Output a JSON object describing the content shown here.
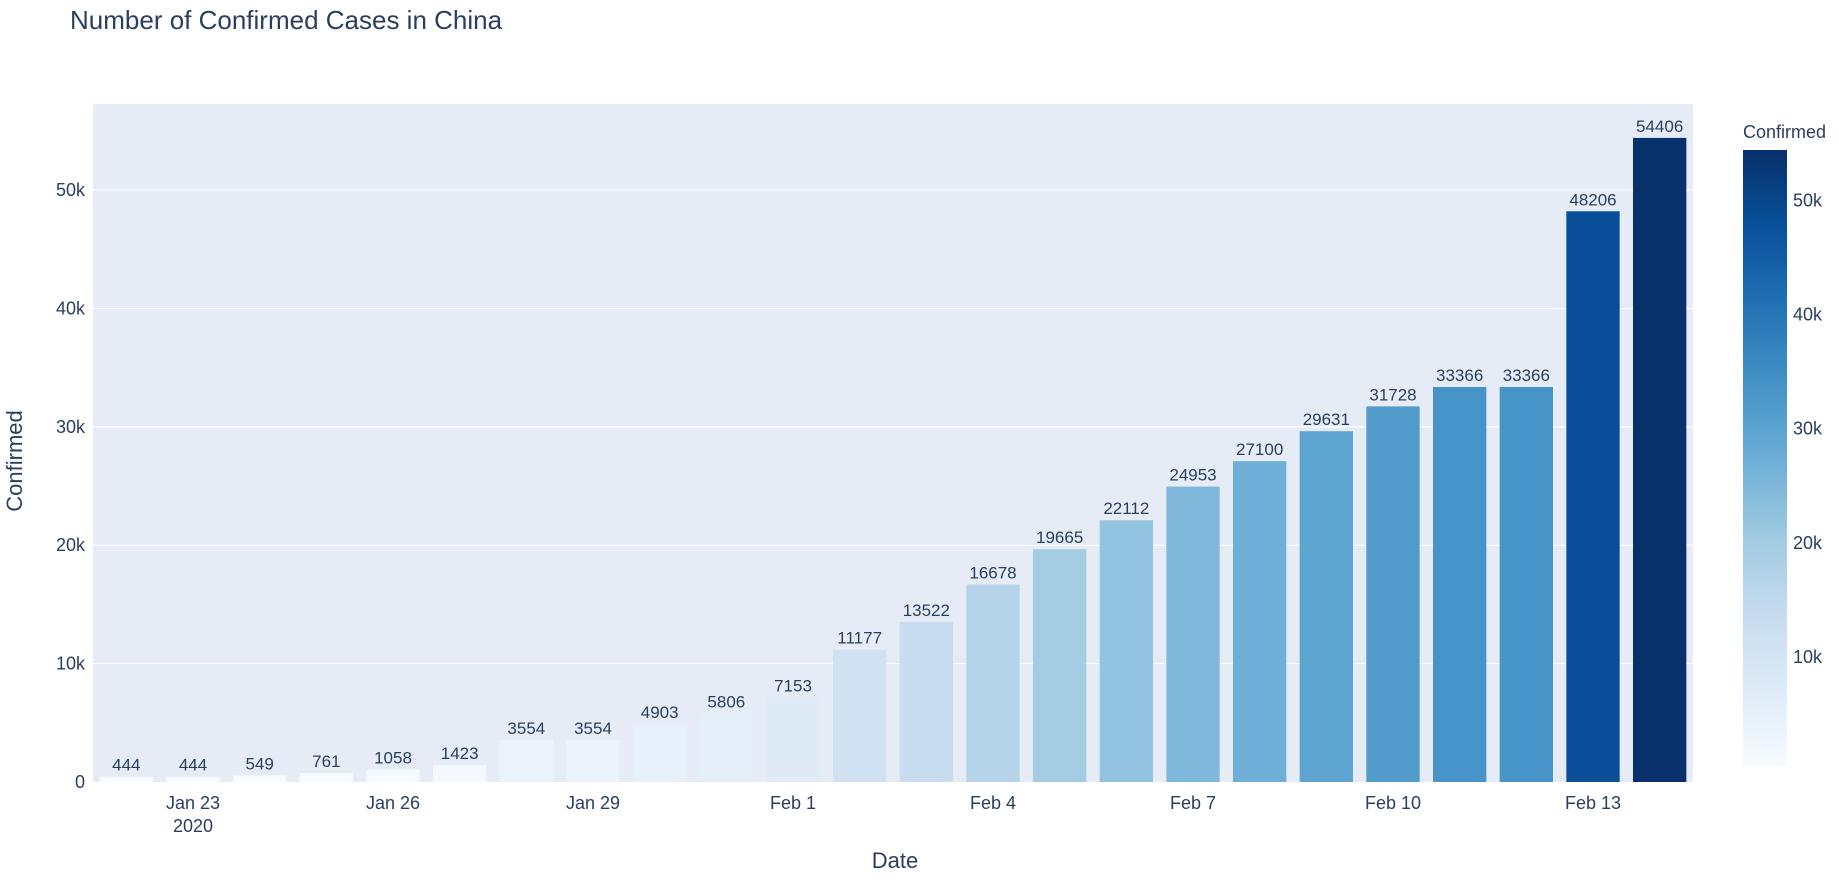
{
  "chart_data": {
    "type": "bar",
    "title": "Number of Confirmed Cases in China",
    "xlabel": "Date",
    "ylabel": "Confirmed",
    "x": [
      "2020-01-22",
      "2020-01-23",
      "2020-01-24",
      "2020-01-25",
      "2020-01-26",
      "2020-01-27",
      "2020-01-28",
      "2020-01-29",
      "2020-01-30",
      "2020-01-31",
      "2020-02-01",
      "2020-02-02",
      "2020-02-03",
      "2020-02-04",
      "2020-02-05",
      "2020-02-06",
      "2020-02-07",
      "2020-02-08",
      "2020-02-09",
      "2020-02-10",
      "2020-02-11",
      "2020-02-12",
      "2020-02-13",
      "2020-02-14"
    ],
    "values": [
      444,
      444,
      549,
      761,
      1058,
      1423,
      3554,
      3554,
      4903,
      5806,
      7153,
      11177,
      13522,
      16678,
      19665,
      22112,
      24953,
      27100,
      29631,
      31728,
      33366,
      33366,
      48206,
      54406
    ],
    "x_ticks": [
      {
        "date": "2020-01-23",
        "label": "Jan 23",
        "sublabel": "2020"
      },
      {
        "date": "2020-01-26",
        "label": "Jan 26",
        "sublabel": ""
      },
      {
        "date": "2020-01-29",
        "label": "Jan 29",
        "sublabel": ""
      },
      {
        "date": "2020-02-01",
        "label": "Feb 1",
        "sublabel": ""
      },
      {
        "date": "2020-02-04",
        "label": "Feb 4",
        "sublabel": ""
      },
      {
        "date": "2020-02-07",
        "label": "Feb 7",
        "sublabel": ""
      },
      {
        "date": "2020-02-10",
        "label": "Feb 10",
        "sublabel": ""
      },
      {
        "date": "2020-02-13",
        "label": "Feb 13",
        "sublabel": ""
      }
    ],
    "y_ticks": [
      {
        "value": 0,
        "label": "0"
      },
      {
        "value": 10000,
        "label": "10k"
      },
      {
        "value": 20000,
        "label": "20k"
      },
      {
        "value": 30000,
        "label": "30k"
      },
      {
        "value": 40000,
        "label": "40k"
      },
      {
        "value": 50000,
        "label": "50k"
      }
    ],
    "ylim": [
      0,
      57270
    ],
    "grid": true,
    "bar_labels": "outside",
    "colorbar": {
      "title": "Confirmed",
      "range": [
        444,
        54406
      ],
      "ticks": [
        {
          "value": 10000,
          "label": "10k"
        },
        {
          "value": 20000,
          "label": "20k"
        },
        {
          "value": 30000,
          "label": "30k"
        },
        {
          "value": 40000,
          "label": "40k"
        },
        {
          "value": 50000,
          "label": "50k"
        }
      ],
      "colorscale": [
        "#f7fbff",
        "#deebf7",
        "#c6dbef",
        "#9ecae1",
        "#6baed6",
        "#4292c6",
        "#2171b5",
        "#08519c",
        "#08306b"
      ]
    },
    "colors": {
      "plot_background": "#e5ecf6",
      "gridline": "#ffffff",
      "text": "#2a3f5f"
    }
  }
}
